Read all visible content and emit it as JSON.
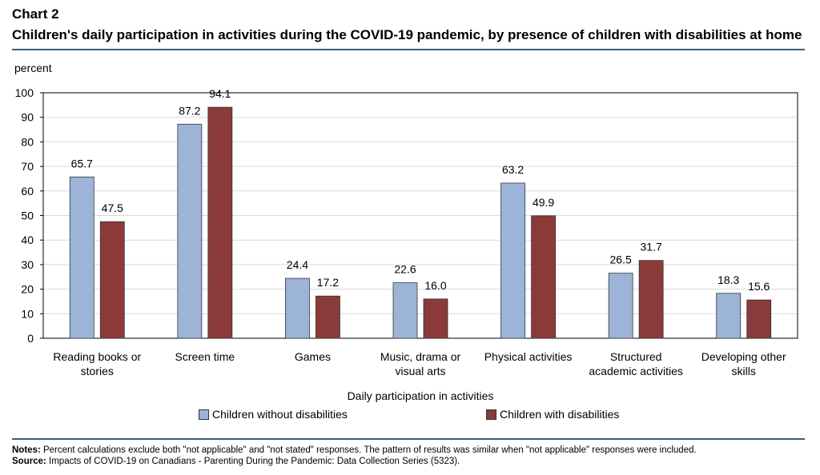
{
  "header": {
    "chart_label": "Chart 2",
    "title": "Children's daily participation in activities during the COVID-19 pandemic, by presence of children with disabilities at home"
  },
  "unit_label": "percent",
  "footer": {
    "notes_label": "Notes:",
    "notes_text": "Percent calculations exclude both \"not applicable\" and \"not stated\" responses. The pattern of results was similar when \"not applicable\" responses were included.",
    "source_label": "Source:",
    "source_text": "Impacts of COVID-19 on Canadians - Parenting During the Pandemic: Data Collection Series (5323)."
  },
  "colors": {
    "rule": "#2f5f8a",
    "grid": "#d9d9d9",
    "axis": "#000000"
  },
  "chart_data": {
    "type": "bar",
    "title": "Children's daily participation in activities during the COVID-19 pandemic, by presence of children with disabilities at home",
    "xlabel": "Daily participation in activities",
    "ylabel": "percent",
    "ylim": [
      0,
      100
    ],
    "yticks": [
      0,
      10,
      20,
      30,
      40,
      50,
      60,
      70,
      80,
      90,
      100
    ],
    "grid": true,
    "legend_position": "bottom",
    "categories": [
      [
        "Reading books or",
        "stories"
      ],
      [
        "Screen time"
      ],
      [
        "Games"
      ],
      [
        "Music, drama or",
        "visual arts"
      ],
      [
        "Physical activities"
      ],
      [
        "Structured",
        "academic activities"
      ],
      [
        "Developing other",
        "skills"
      ]
    ],
    "series": [
      {
        "name": "Children without disabilities",
        "color": "#9cb4d8",
        "values": [
          65.7,
          87.2,
          24.4,
          22.6,
          63.2,
          26.5,
          18.3
        ]
      },
      {
        "name": "Children with disabilities",
        "color": "#8b3a3a",
        "values": [
          47.5,
          94.1,
          17.2,
          16.0,
          49.9,
          31.7,
          15.6
        ]
      }
    ]
  }
}
